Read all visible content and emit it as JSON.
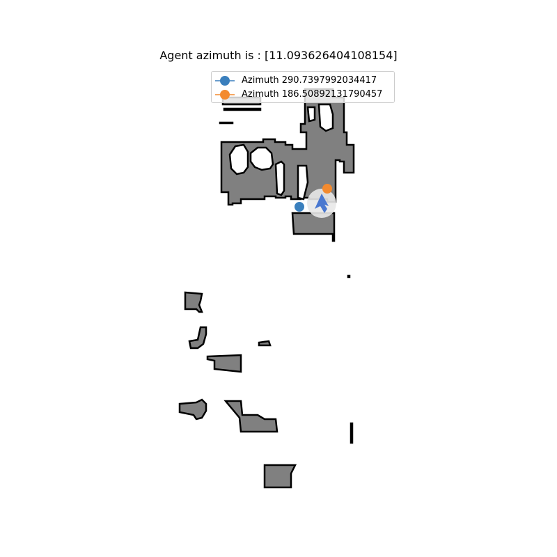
{
  "title": "Agent azimuth is : [11.093626404108154]",
  "legend": [
    {
      "label": "Azimuth 290.7397992034417",
      "color": "#3a7fbd"
    },
    {
      "label": "Azimuth 186.50892131790457",
      "color": "#f38a2e"
    }
  ],
  "colors": {
    "obstacle_fill": "#808080",
    "obstacle_edge": "#000000",
    "explored_area": "#ffffff",
    "agent_arrow": "#4a78d0",
    "agent_halo": "#e8e8e8",
    "background": "#ffffff"
  },
  "icons": {
    "agent": "agent-arrow-icon"
  }
}
